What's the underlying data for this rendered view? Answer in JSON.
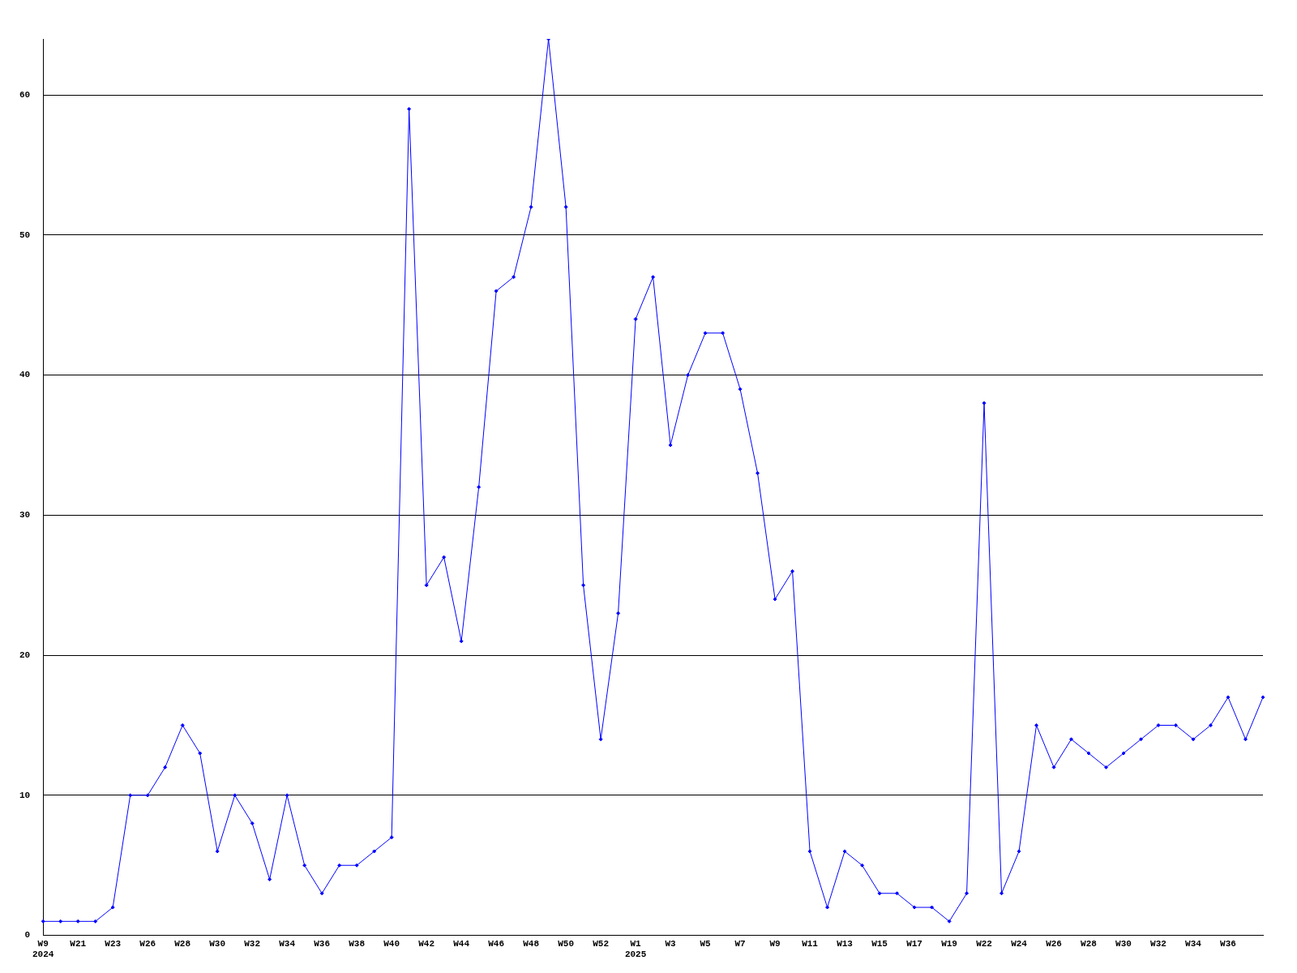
{
  "chart_data": {
    "type": "line",
    "categories": [
      "W9\n2024",
      null,
      "W21",
      null,
      "W23",
      null,
      "W26",
      null,
      "W28",
      null,
      "W30",
      null,
      "W32",
      null,
      "W34",
      null,
      "W36",
      null,
      "W38",
      null,
      "W40",
      null,
      "W42",
      null,
      "W44",
      null,
      "W46",
      null,
      "W48",
      null,
      "W50",
      null,
      "W52",
      null,
      "W1\n2025",
      null,
      "W3",
      null,
      "W5",
      null,
      "W7",
      null,
      "W9",
      null,
      "W11",
      null,
      "W13",
      null,
      "W15",
      null,
      "W17",
      null,
      "W19",
      null,
      "W22",
      null,
      "W24",
      null,
      "W26",
      null,
      "W28",
      null,
      "W30",
      null,
      "W32",
      null,
      "W34",
      null,
      "W36",
      null,
      null
    ],
    "series": [
      {
        "color": "#0000ff",
        "values": [
          1,
          1,
          1,
          1,
          2,
          10,
          10,
          12,
          15,
          13,
          6,
          10,
          8,
          4,
          10,
          5,
          3,
          5,
          5,
          6,
          7,
          59,
          25,
          27,
          21,
          32,
          46,
          47,
          52,
          64,
          52,
          25,
          14,
          23,
          44,
          47,
          35,
          40,
          43,
          43,
          39,
          33,
          24,
          26,
          6,
          2,
          6,
          5,
          3,
          3,
          2,
          2,
          1,
          3,
          38,
          3,
          6,
          15,
          12,
          14,
          13,
          12,
          13,
          14,
          15,
          15,
          14,
          15,
          17,
          14,
          17
        ]
      }
    ],
    "ylim": [
      0,
      64
    ],
    "yticks": [
      0,
      10,
      20,
      30,
      40,
      50,
      60
    ],
    "grid": "y",
    "legend": false,
    "marker": "diamond",
    "line_style": "solid"
  }
}
